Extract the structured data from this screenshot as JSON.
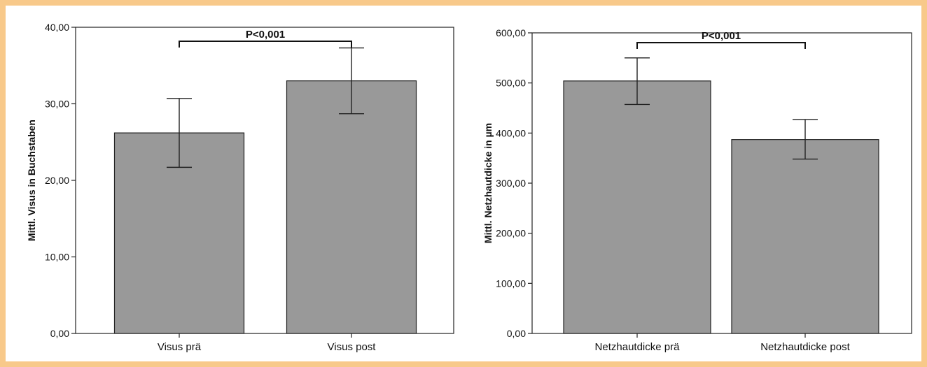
{
  "chart_data": [
    {
      "type": "bar",
      "ylabel": "Mittl. Visus in Buchstaben",
      "categories": [
        "Visus prä",
        "Visus post"
      ],
      "values": [
        26.2,
        33.0
      ],
      "error_bars": [
        [
          21.7,
          30.7
        ],
        [
          28.7,
          37.3
        ]
      ],
      "ylim": [
        0,
        40
      ],
      "yticks": [
        "0,00",
        "10,00",
        "20,00",
        "30,00",
        "40,00"
      ],
      "yticks_values": [
        0,
        10,
        20,
        30,
        40
      ],
      "annotation": "P<0,001",
      "grid": false,
      "bar_color": "#999999"
    },
    {
      "type": "bar",
      "ylabel": "Mittl. Netzhautdicke in µm",
      "categories": [
        "Netzhautdicke prä",
        "Netzhautdicke post"
      ],
      "values": [
        504,
        387
      ],
      "error_bars": [
        [
          457,
          550
        ],
        [
          348,
          427
        ]
      ],
      "ylim": [
        0,
        600
      ],
      "yticks": [
        "0,00",
        "100,00",
        "200,00",
        "300,00",
        "400,00",
        "500,00",
        "600,00"
      ],
      "yticks_values": [
        0,
        100,
        200,
        300,
        400,
        500,
        600
      ],
      "annotation": "P<0,001",
      "grid": false,
      "bar_color": "#999999"
    }
  ]
}
